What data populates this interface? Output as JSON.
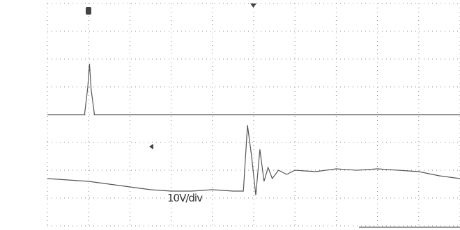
{
  "chart_data": {
    "type": "line",
    "annotation": "10V/div",
    "xlim": [
      -5,
      5
    ],
    "ylim": [
      -4,
      4
    ],
    "xticks": [
      -5,
      -4,
      -3,
      -2,
      -1,
      0,
      1,
      2,
      3,
      4,
      5
    ],
    "yticks": [
      -4,
      -3,
      -2,
      -1,
      0,
      1,
      2,
      3,
      4
    ],
    "grid": true,
    "series": [
      {
        "color": "#555555",
        "x": [
          -5,
          -4.1,
          -4.02,
          -3.98,
          -3.94,
          -3.86,
          5
        ],
        "values": [
          0,
          0,
          1.0,
          1.83,
          0.9,
          0,
          0
        ]
      },
      {
        "color": "#555555",
        "x": [
          -5,
          -4.5,
          -4,
          -3.5,
          -3,
          -2.5,
          -2,
          -1.5,
          -1,
          -0.5,
          -0.25,
          -0.15,
          -0.05,
          0.05,
          0.15,
          0.25,
          0.35,
          0.45,
          0.6,
          0.8,
          1,
          1.5,
          2,
          2.5,
          3,
          3.5,
          4,
          4.5,
          5
        ],
        "values": [
          -2.3,
          -2.35,
          -2.4,
          -2.5,
          -2.6,
          -2.7,
          -2.75,
          -2.75,
          -2.7,
          -2.75,
          -2.75,
          -0.38,
          -1.5,
          -2.9,
          -1.25,
          -2.4,
          -1.9,
          -2.3,
          -2.0,
          -2.15,
          -2.0,
          -2.05,
          -1.95,
          -2.0,
          -1.95,
          -2.0,
          -2.05,
          -2.2,
          -2.3
        ]
      }
    ]
  }
}
